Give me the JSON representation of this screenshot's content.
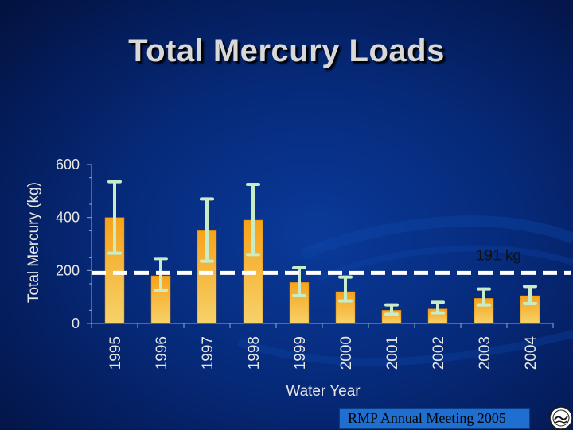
{
  "slide": {
    "title": "Total Mercury Loads",
    "footer": "RMP Annual Meeting 2005"
  },
  "chart_data": {
    "type": "bar",
    "categories": [
      "1995",
      "1996",
      "1997",
      "1998",
      "1999",
      "2000",
      "2001",
      "2002",
      "2003",
      "2004"
    ],
    "values": [
      400,
      180,
      350,
      390,
      155,
      120,
      50,
      55,
      95,
      105
    ],
    "error_low": [
      265,
      125,
      235,
      260,
      105,
      85,
      35,
      40,
      70,
      75
    ],
    "error_high": [
      535,
      245,
      470,
      525,
      210,
      175,
      70,
      80,
      130,
      140
    ],
    "xlabel": "Water Year",
    "ylabel": "Total Mercury (kg)",
    "ylim": [
      0,
      600
    ],
    "yticks": [
      0,
      200,
      400,
      600
    ],
    "reference_line": {
      "value": 191,
      "label": "191 kg"
    },
    "grid": false,
    "colors": {
      "bar_top": "#f7a21a",
      "bar_bottom": "#f6d26a",
      "error_bar": "#c8ecc8",
      "axis_text": "#e6e6e6",
      "ref_line": "#ffffff"
    }
  }
}
